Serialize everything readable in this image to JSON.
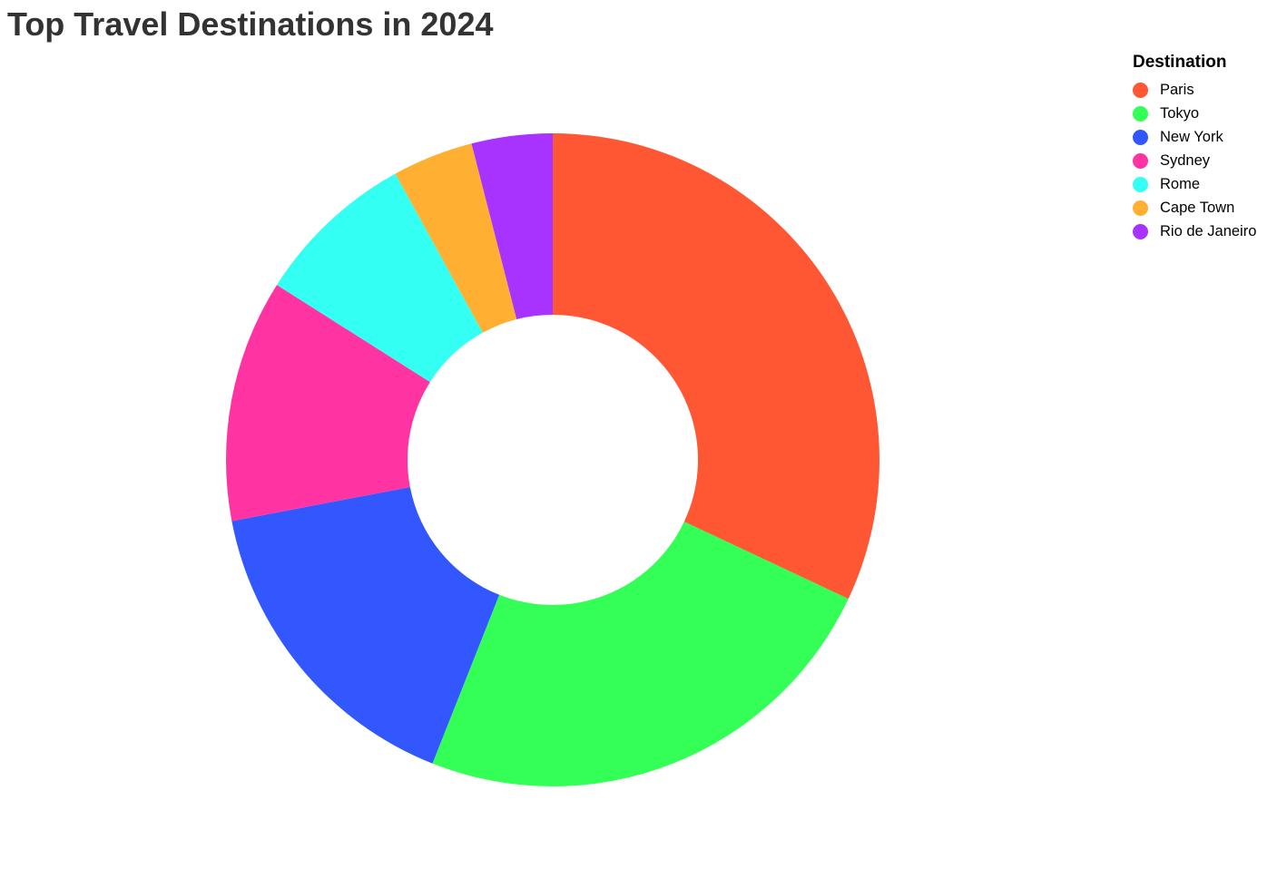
{
  "chart_data": {
    "type": "pie",
    "donut": true,
    "title": "Top Travel Destinations in 2024",
    "legend": {
      "title": "Destination",
      "placement": "top-right"
    },
    "series": [
      {
        "name": "Paris",
        "value": 32,
        "color": "#FF5733"
      },
      {
        "name": "Tokyo",
        "value": 24,
        "color": "#33FF57"
      },
      {
        "name": "New York",
        "value": 16,
        "color": "#3357FF"
      },
      {
        "name": "Sydney",
        "value": 12,
        "color": "#FF33A1"
      },
      {
        "name": "Rome",
        "value": 8,
        "color": "#33FFF3"
      },
      {
        "name": "Cape Town",
        "value": 4,
        "color": "#FFB033"
      },
      {
        "name": "Rio de Janeiro",
        "value": 4,
        "color": "#A833FF"
      }
    ],
    "sort": "descending",
    "start": "top"
  }
}
